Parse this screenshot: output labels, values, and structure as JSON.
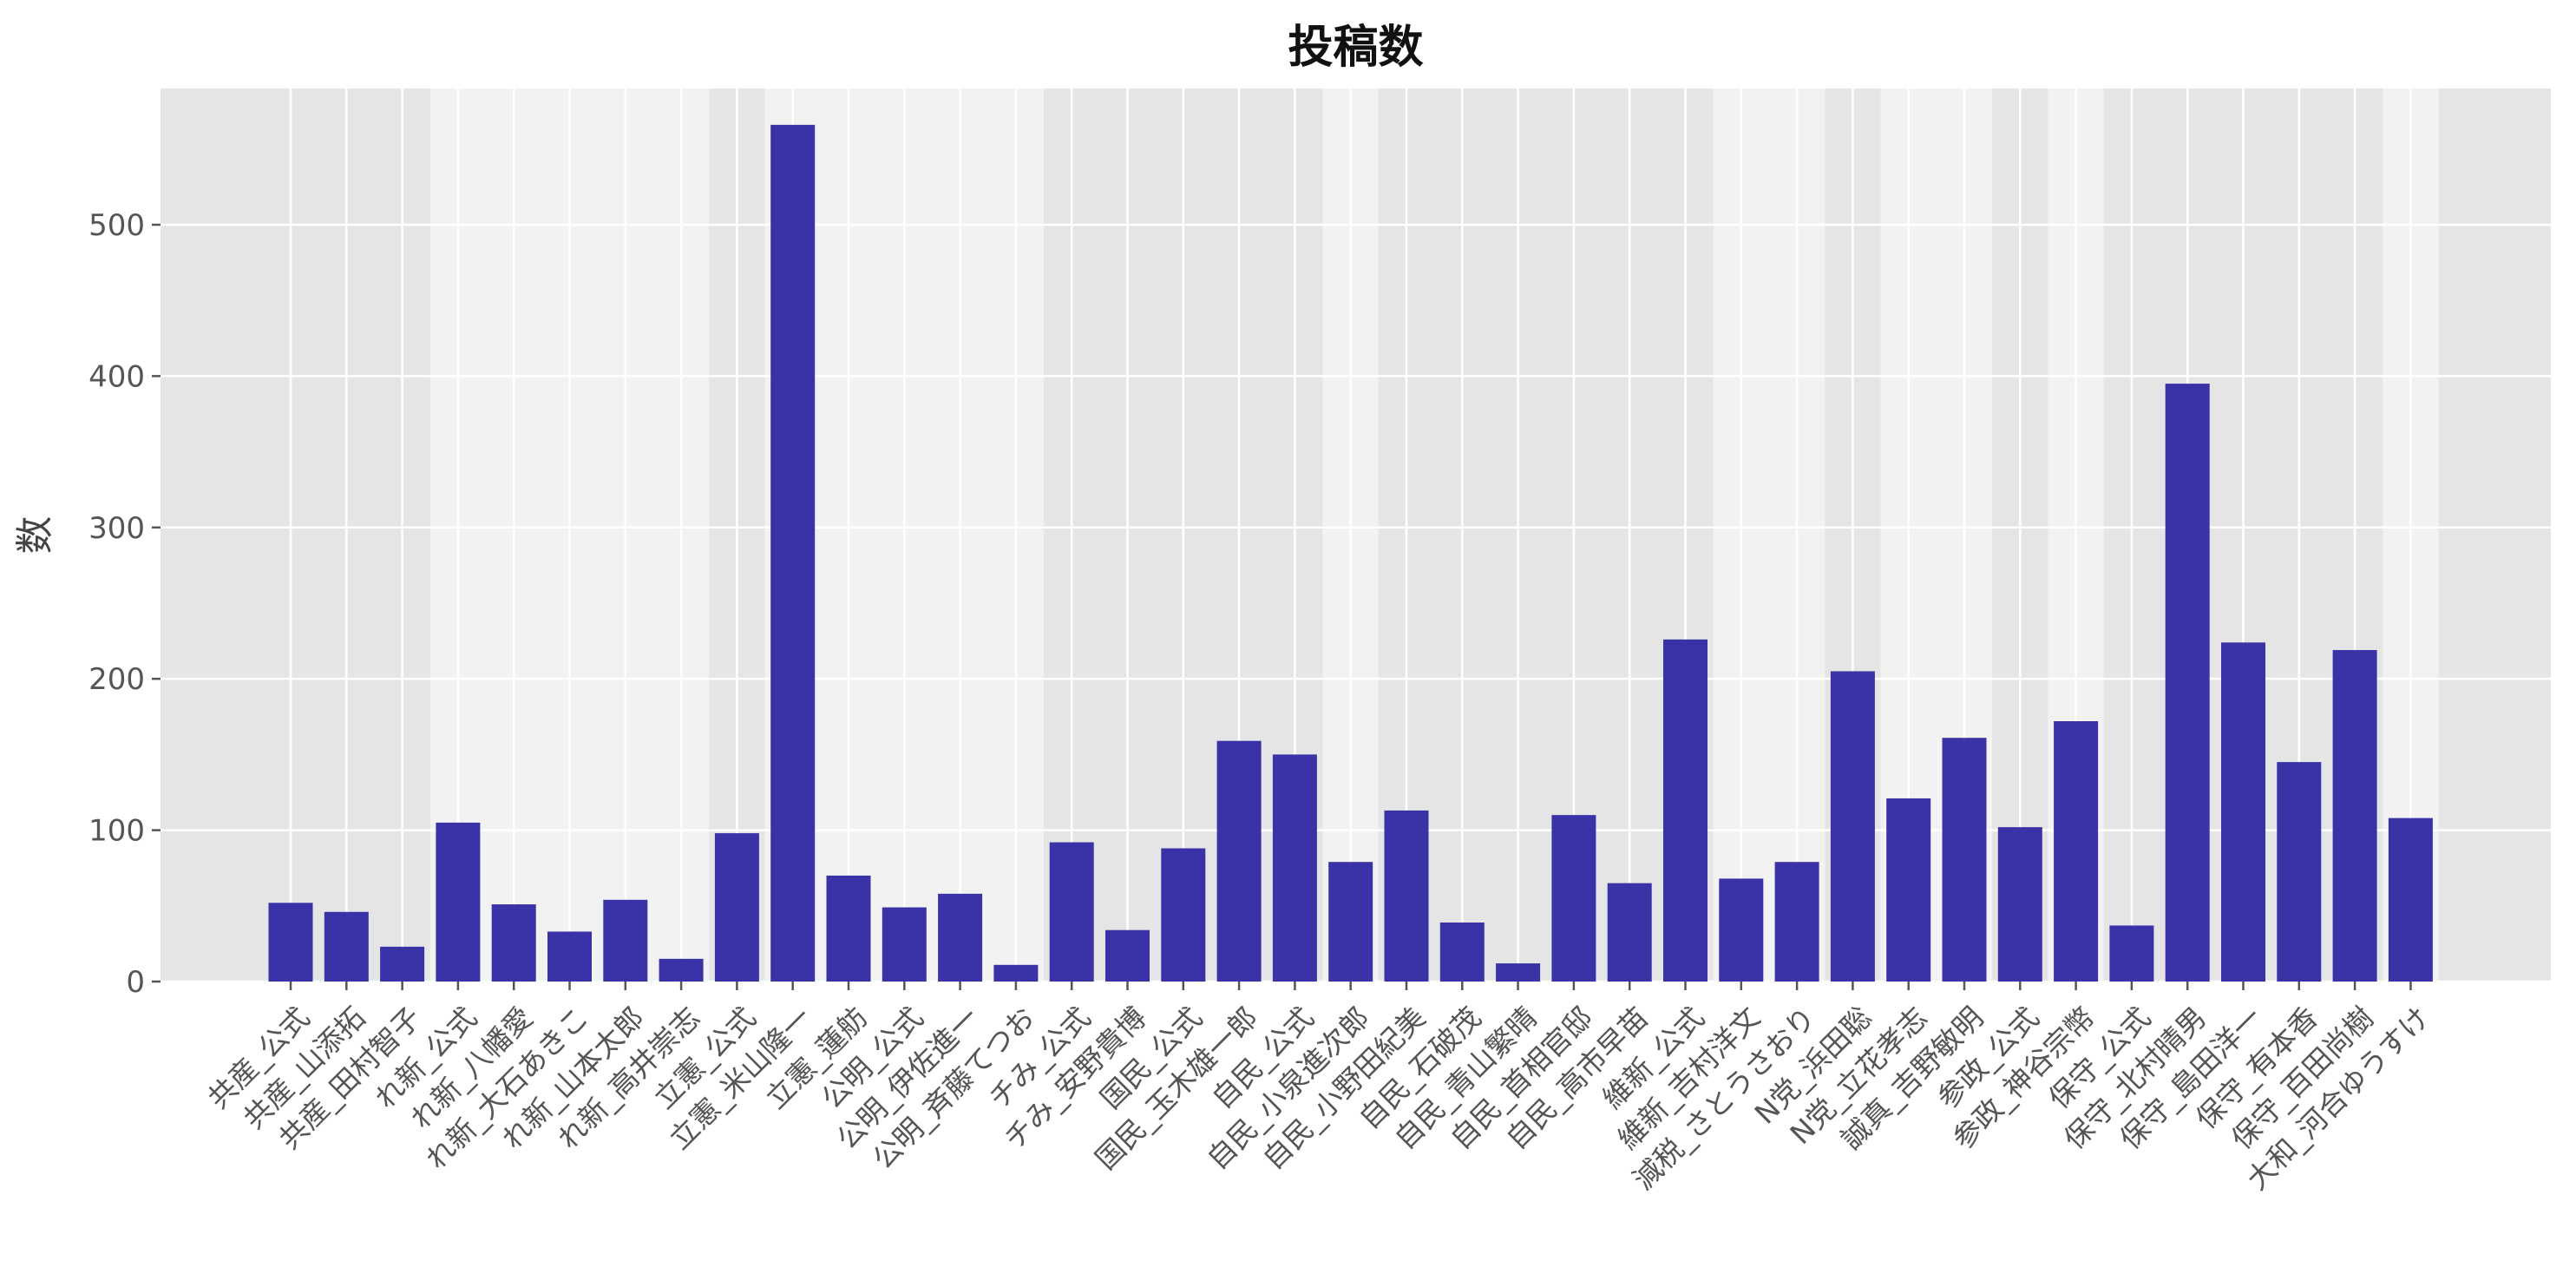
{
  "chart_data": {
    "type": "bar",
    "title": "投稿数",
    "xlabel": "",
    "ylabel": "数",
    "ylim": [
      0,
      590
    ],
    "yticks": [
      0,
      100,
      200,
      300,
      400,
      500
    ],
    "grid": true,
    "legend": "none",
    "bar_color": "#3a33a7",
    "background_color": "#e5e5e5",
    "band_light_color": "#f2f2f2",
    "grid_color": "#ffffff",
    "categories": [
      "共産_公式",
      "共産_山添拓",
      "共産_田村智子",
      "れ新_公式",
      "れ新_八幡愛",
      "れ新_大石あきこ",
      "れ新_山本太郎",
      "れ新_高井崇志",
      "立憲_公式",
      "立憲_米山隆一",
      "立憲_蓮舫",
      "公明_公式",
      "公明_伊佐進一",
      "公明_斉藤てつお",
      "チみ_公式",
      "チみ_安野貴博",
      "国民_公式",
      "国民_玉木雄一郎",
      "自民_公式",
      "自民_小泉進次郎",
      "自民_小野田紀美",
      "自民_石破茂",
      "自民_青山繁晴",
      "自民_首相官邸",
      "自民_高市早苗",
      "維新_公式",
      "維新_吉村洋文",
      "減税_さとうさおり",
      "N党_浜田聡",
      "N党_立花孝志",
      "誠真_吉野敏明",
      "参政_公式",
      "参政_神谷宗幣",
      "保守_公式",
      "保守_北村晴男",
      "保守_島田洋一",
      "保守_有本香",
      "保守_百田尚樹",
      "大和_河合ゆうすけ"
    ],
    "values": [
      52,
      46,
      23,
      105,
      51,
      33,
      54,
      15,
      98,
      566,
      70,
      49,
      58,
      11,
      92,
      34,
      88,
      159,
      150,
      79,
      113,
      39,
      12,
      110,
      65,
      226,
      68,
      79,
      205,
      121,
      161,
      102,
      172,
      37,
      395,
      224,
      145,
      219,
      108
    ],
    "light_bands": [
      [
        3,
        7
      ],
      [
        9,
        13
      ],
      [
        19,
        19
      ],
      [
        26,
        27
      ],
      [
        29,
        30
      ],
      [
        32,
        32
      ],
      [
        38,
        38
      ]
    ]
  }
}
